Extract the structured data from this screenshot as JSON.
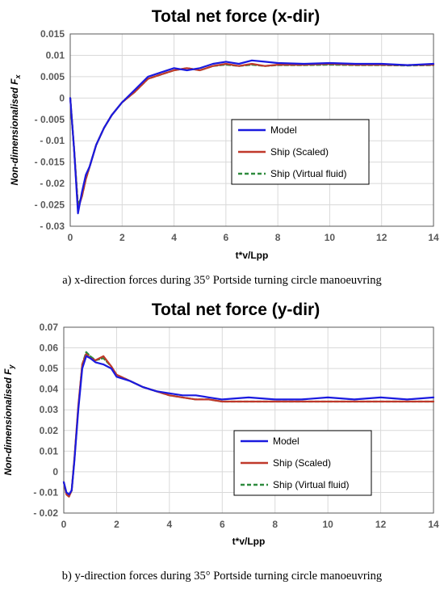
{
  "chart_data": [
    {
      "type": "line",
      "title": "Total net force (x-dir)",
      "xlabel": "t*v/Lpp",
      "ylabel": "Non-dimensionalised F",
      "ylabel_sub": "x",
      "xlim": [
        0,
        14
      ],
      "ylim": [
        -0.03,
        0.015
      ],
      "xticks": [
        0,
        2,
        4,
        6,
        8,
        10,
        12,
        14
      ],
      "xtick_labels": [
        "0",
        "2",
        "4",
        "6",
        "8",
        "10",
        "12",
        "14"
      ],
      "yticks": [
        -0.03,
        -0.025,
        -0.02,
        -0.015,
        -0.01,
        -0.005,
        0,
        0.005,
        0.01,
        0.015
      ],
      "ytick_labels": [
        "- 0.03",
        "- 0.025",
        "- 0.02",
        "- 0.015",
        "- 0.01",
        "- 0.005",
        "0",
        "0.005",
        "0.01",
        "0.015"
      ],
      "grid": true,
      "legend_position": "right",
      "series": [
        {
          "name": "Model",
          "color": "#1a1adf",
          "dash": "solid",
          "x": [
            0,
            0.15,
            0.3,
            0.45,
            0.6,
            0.75,
            1.0,
            1.3,
            1.6,
            2.0,
            2.5,
            3.0,
            3.5,
            4.0,
            4.5,
            5.0,
            5.5,
            6.0,
            6.5,
            7.0,
            7.5,
            8.0,
            9.0,
            10.0,
            11.0,
            12.0,
            13.0,
            14.0
          ],
          "y": [
            0,
            -0.012,
            -0.027,
            -0.022,
            -0.018,
            -0.016,
            -0.011,
            -0.007,
            -0.004,
            -0.001,
            0.002,
            0.005,
            0.006,
            0.007,
            0.0065,
            0.007,
            0.008,
            0.0085,
            0.008,
            0.0088,
            0.0085,
            0.0082,
            0.008,
            0.0082,
            0.008,
            0.008,
            0.0077,
            0.008
          ]
        },
        {
          "name": "Ship (Scaled)",
          "color": "#c0392b",
          "dash": "solid",
          "x": [
            0,
            0.15,
            0.3,
            0.45,
            0.6,
            0.75,
            1.0,
            1.3,
            1.6,
            2.0,
            2.5,
            3.0,
            3.5,
            4.0,
            4.5,
            5.0,
            5.5,
            6.0,
            6.5,
            7.0,
            7.5,
            8.0,
            9.0,
            10.0,
            11.0,
            12.0,
            13.0,
            14.0
          ],
          "y": [
            0,
            -0.012,
            -0.026,
            -0.023,
            -0.019,
            -0.016,
            -0.011,
            -0.007,
            -0.004,
            -0.001,
            0.0015,
            0.0045,
            0.0055,
            0.0065,
            0.007,
            0.0065,
            0.0075,
            0.008,
            0.0075,
            0.008,
            0.0075,
            0.0078,
            0.0078,
            0.008,
            0.0078,
            0.0078,
            0.0077,
            0.0078
          ]
        },
        {
          "name": "Ship (Virtual fluid)",
          "color": "#2e8b3e",
          "dash": "dashed",
          "x": [
            0,
            0.15,
            0.3,
            0.45,
            0.6,
            0.75,
            1.0,
            1.3,
            1.6,
            2.0,
            2.5,
            3.0,
            3.5,
            4.0,
            4.5,
            5.0,
            5.5,
            6.0,
            6.5,
            7.0,
            7.5,
            8.0,
            9.0,
            10.0,
            11.0,
            12.0,
            13.0,
            14.0
          ],
          "y": [
            0,
            -0.012,
            -0.025,
            -0.023,
            -0.019,
            -0.016,
            -0.011,
            -0.007,
            -0.004,
            -0.001,
            0.0015,
            0.0045,
            0.0055,
            0.0065,
            0.007,
            0.0065,
            0.0075,
            0.0078,
            0.0075,
            0.0078,
            0.0075,
            0.0077,
            0.0077,
            0.0078,
            0.0077,
            0.0077,
            0.0076,
            0.0077
          ]
        }
      ],
      "caption": "a) x-direction forces during 35° Portside turning circle manoeuvring"
    },
    {
      "type": "line",
      "title": "Total net force (y-dir)",
      "xlabel": "t*v/Lpp",
      "ylabel": "Non-dimensionalised F",
      "ylabel_sub": "y",
      "xlim": [
        0,
        14
      ],
      "ylim": [
        -0.02,
        0.07
      ],
      "xticks": [
        0,
        2,
        4,
        6,
        8,
        10,
        12,
        14
      ],
      "xtick_labels": [
        "0",
        "2",
        "4",
        "6",
        "8",
        "10",
        "12",
        "14"
      ],
      "yticks": [
        -0.02,
        -0.01,
        0,
        0.01,
        0.02,
        0.03,
        0.04,
        0.05,
        0.06,
        0.07
      ],
      "ytick_labels": [
        "- 0.02",
        "- 0.01",
        "0",
        "0.01",
        "0.02",
        "0.03",
        "0.04",
        "0.05",
        "0.06",
        "0.07"
      ],
      "grid": true,
      "legend_position": "right",
      "series": [
        {
          "name": "Model",
          "color": "#1a1adf",
          "dash": "solid",
          "x": [
            0,
            0.1,
            0.2,
            0.3,
            0.4,
            0.55,
            0.7,
            0.85,
            1.0,
            1.2,
            1.5,
            1.8,
            2.0,
            2.5,
            3.0,
            3.5,
            4.0,
            4.5,
            5.0,
            5.5,
            6.0,
            7.0,
            8.0,
            9.0,
            10.0,
            11.0,
            12.0,
            13.0,
            14.0
          ],
          "y": [
            -0.005,
            -0.01,
            -0.011,
            -0.009,
            0.005,
            0.03,
            0.05,
            0.056,
            0.055,
            0.053,
            0.052,
            0.05,
            0.046,
            0.044,
            0.041,
            0.039,
            0.038,
            0.037,
            0.037,
            0.036,
            0.035,
            0.036,
            0.035,
            0.035,
            0.036,
            0.035,
            0.036,
            0.035,
            0.036
          ]
        },
        {
          "name": "Ship (Scaled)",
          "color": "#c0392b",
          "dash": "solid",
          "x": [
            0,
            0.1,
            0.2,
            0.3,
            0.4,
            0.55,
            0.7,
            0.85,
            1.0,
            1.2,
            1.5,
            1.8,
            2.0,
            2.5,
            3.0,
            3.5,
            4.0,
            4.5,
            5.0,
            5.5,
            6.0,
            7.0,
            8.0,
            9.0,
            10.0,
            11.0,
            12.0,
            13.0,
            14.0
          ],
          "y": [
            -0.005,
            -0.011,
            -0.012,
            -0.009,
            0.006,
            0.032,
            0.052,
            0.057,
            0.055,
            0.054,
            0.056,
            0.051,
            0.047,
            0.044,
            0.041,
            0.039,
            0.037,
            0.036,
            0.035,
            0.035,
            0.034,
            0.034,
            0.034,
            0.034,
            0.034,
            0.034,
            0.034,
            0.034,
            0.034
          ]
        },
        {
          "name": "Ship (Virtual fluid)",
          "color": "#2e8b3e",
          "dash": "dashed",
          "x": [
            0,
            0.1,
            0.2,
            0.3,
            0.4,
            0.55,
            0.7,
            0.85,
            1.0,
            1.2,
            1.5,
            1.8,
            2.0,
            2.5,
            3.0,
            3.5,
            4.0,
            4.5,
            5.0,
            5.5,
            6.0,
            7.0,
            8.0,
            9.0,
            10.0,
            11.0,
            12.0,
            13.0,
            14.0
          ],
          "y": [
            -0.005,
            -0.011,
            -0.012,
            -0.009,
            0.006,
            0.031,
            0.052,
            0.058,
            0.056,
            0.054,
            0.055,
            0.051,
            0.047,
            0.044,
            0.041,
            0.039,
            0.037,
            0.036,
            0.035,
            0.035,
            0.034,
            0.034,
            0.034,
            0.034,
            0.034,
            0.034,
            0.034,
            0.034,
            0.034
          ]
        }
      ],
      "caption": "b) y-direction forces during 35° Portside turning circle manoeuvring"
    }
  ]
}
